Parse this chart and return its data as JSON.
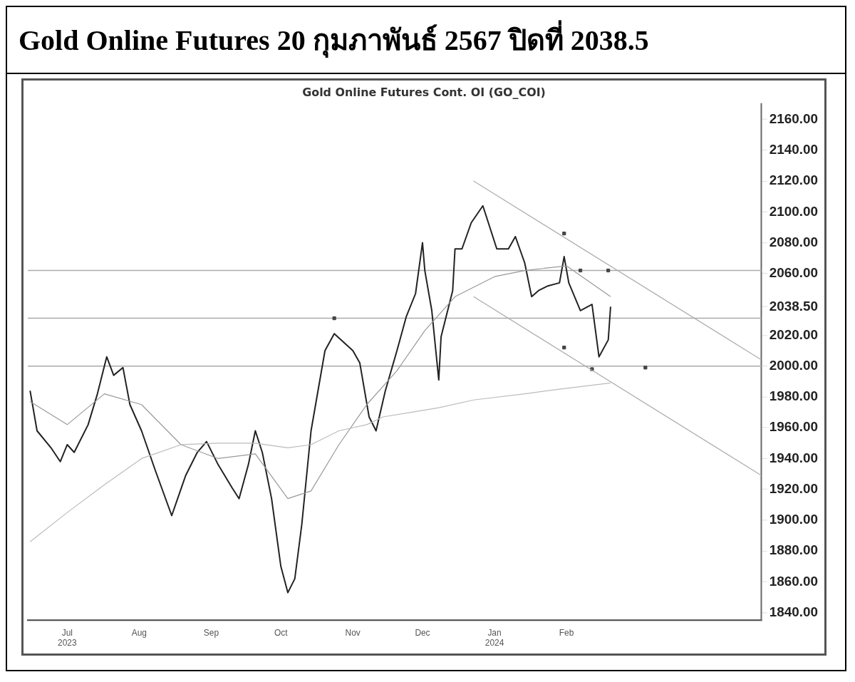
{
  "chart_data": {
    "type": "line",
    "title": "Gold Online Futures 20 กุมภาพันธ์ 2567 ปิดที่ 2038.5",
    "subtitle": "Gold Online Futures Cont. OI (GO_COI)",
    "xlim": [
      "2023-06-14",
      "2024-04-25"
    ],
    "xticks": [
      {
        "value": "2023-07-01",
        "label": "Jul\n2023"
      },
      {
        "value": "2023-08-01",
        "label": "Aug"
      },
      {
        "value": "2023-09-01",
        "label": "Sep"
      },
      {
        "value": "2023-10-01",
        "label": "Oct"
      },
      {
        "value": "2023-11-01",
        "label": "Nov"
      },
      {
        "value": "2023-12-01",
        "label": "Dec"
      },
      {
        "value": "2024-01-01",
        "label": "Jan\n2024"
      },
      {
        "value": "2024-02-01",
        "label": "Feb"
      }
    ],
    "ylim": [
      1835,
      2170
    ],
    "yticks": [
      {
        "value": 1840,
        "label": "1840.00"
      },
      {
        "value": 1860,
        "label": "1860.00"
      },
      {
        "value": 1880,
        "label": "1880.00"
      },
      {
        "value": 1900,
        "label": "1900.00"
      },
      {
        "value": 1920,
        "label": "1920.00"
      },
      {
        "value": 1940,
        "label": "1940.00"
      },
      {
        "value": 1960,
        "label": "1960.00"
      },
      {
        "value": 1980,
        "label": "1980.00"
      },
      {
        "value": 2000,
        "label": "2000.00"
      },
      {
        "value": 2020,
        "label": "2020.00"
      },
      {
        "value": 2038.5,
        "label": "2038.50"
      },
      {
        "value": 2060,
        "label": "2060.00"
      },
      {
        "value": 2080,
        "label": "2080.00"
      },
      {
        "value": 2100,
        "label": "2100.00"
      },
      {
        "value": 2120,
        "label": "2120.00"
      },
      {
        "value": 2140,
        "label": "2140.00"
      },
      {
        "value": 2160,
        "label": "2160.00"
      }
    ],
    "grid": false,
    "legend": false,
    "series": [
      {
        "color": "#bbbbbb",
        "line_style": "solid",
        "marker": "none",
        "x": [
          "2023-06-15",
          "2023-07-01",
          "2023-07-17",
          "2023-08-02",
          "2023-08-19",
          "2023-09-04",
          "2023-09-20",
          "2023-10-04",
          "2023-10-14",
          "2023-10-26",
          "2023-11-07",
          "2023-11-14",
          "2023-11-26",
          "2023-12-08",
          "2023-12-23",
          "2024-01-14",
          "2024-01-29",
          "2024-02-20"
        ],
        "values": [
          1886,
          1905,
          1923,
          1940,
          1949,
          1950,
          1950,
          1947,
          1949,
          1958,
          1962,
          1967,
          1970,
          1973,
          1978,
          1982,
          1985,
          1989
        ]
      },
      {
        "color": "#999999",
        "line_style": "solid",
        "marker": "none",
        "x": [
          "2023-06-15",
          "2023-07-01",
          "2023-07-17",
          "2023-08-02",
          "2023-08-19",
          "2023-09-04",
          "2023-09-20",
          "2023-10-04",
          "2023-10-14",
          "2023-10-26",
          "2023-11-07",
          "2023-11-20",
          "2023-12-02",
          "2023-12-15",
          "2024-01-01",
          "2024-01-14",
          "2024-02-01",
          "2024-02-20"
        ],
        "values": [
          1977,
          1962,
          1982,
          1975,
          1949,
          1940,
          1943,
          1914,
          1919,
          1949,
          1975,
          1997,
          2023,
          2045,
          2058,
          2062,
          2065,
          2045
        ]
      },
      {
        "color": "#222222",
        "line_style": "solid",
        "marker": "none",
        "x": [
          "2023-06-15",
          "2023-06-18",
          "2023-06-24",
          "2023-06-28",
          "2023-07-01",
          "2023-07-04",
          "2023-07-10",
          "2023-07-14",
          "2023-07-18",
          "2023-07-21",
          "2023-07-25",
          "2023-07-28",
          "2023-08-02",
          "2023-08-08",
          "2023-08-15",
          "2023-08-21",
          "2023-08-26",
          "2023-08-30",
          "2023-09-04",
          "2023-09-10",
          "2023-09-13",
          "2023-09-17",
          "2023-09-20",
          "2023-09-23",
          "2023-09-27",
          "2023-10-01",
          "2023-10-04",
          "2023-10-07",
          "2023-10-10",
          "2023-10-14",
          "2023-10-17",
          "2023-10-20",
          "2023-10-24",
          "2023-11-01",
          "2023-11-04",
          "2023-11-08",
          "2023-11-11",
          "2023-11-15",
          "2023-11-20",
          "2023-11-24",
          "2023-11-28",
          "2023-12-01",
          "2023-12-02",
          "2023-12-05",
          "2023-12-08",
          "2023-12-09",
          "2023-12-14",
          "2023-12-15",
          "2023-12-18",
          "2023-12-22",
          "2023-12-27",
          "2024-01-02",
          "2024-01-07",
          "2024-01-10",
          "2024-01-14",
          "2024-01-17",
          "2024-01-20",
          "2024-01-24",
          "2024-01-29",
          "2024-01-31",
          "2024-02-02",
          "2024-02-07",
          "2024-02-12",
          "2024-02-15",
          "2024-02-19",
          "2024-02-20"
        ],
        "values": [
          1984,
          1958,
          1947,
          1938,
          1949,
          1944,
          1962,
          1982,
          2006,
          1994,
          1999,
          1975,
          1958,
          1932,
          1903,
          1929,
          1944,
          1951,
          1936,
          1921,
          1914,
          1936,
          1958,
          1944,
          1914,
          1870,
          1853,
          1862,
          1897,
          1958,
          1984,
          2010,
          2021,
          2010,
          2002,
          1967,
          1958,
          1984,
          2010,
          2032,
          2047,
          2080,
          2062,
          2036,
          1991,
          2019,
          2049,
          2076,
          2076,
          2093,
          2104,
          2076,
          2076,
          2084,
          2067,
          2045,
          2049,
          2052,
          2054,
          2071,
          2054,
          2036,
          2040,
          2006,
          2017,
          2038.5
        ]
      },
      {
        "color": "#aaaaaa",
        "line_style": "solid",
        "marker": "none",
        "x": [
          "2023-12-23",
          "2024-04-25"
        ],
        "values": [
          2120,
          2004
        ]
      },
      {
        "color": "#aaaaaa",
        "line_style": "solid",
        "marker": "none",
        "x": [
          "2023-12-23",
          "2024-04-25"
        ],
        "values": [
          2045,
          1929
        ]
      },
      {
        "type": "scatter",
        "color": "#444444",
        "marker": "square",
        "x": [
          "2023-10-24",
          "2024-01-31",
          "2024-02-07",
          "2024-02-19",
          "2024-01-31",
          "2024-02-12",
          "2024-03-06"
        ],
        "values": [
          2031,
          2086,
          2062,
          2062,
          2012,
          1998,
          1999
        ]
      }
    ],
    "ref_lines": [
      {
        "axis": "y",
        "value": 2062,
        "color": "#aaaaaa"
      },
      {
        "axis": "y",
        "value": 2031,
        "color": "#aaaaaa"
      },
      {
        "axis": "y",
        "value": 2000,
        "color": "#aaaaaa"
      }
    ]
  }
}
